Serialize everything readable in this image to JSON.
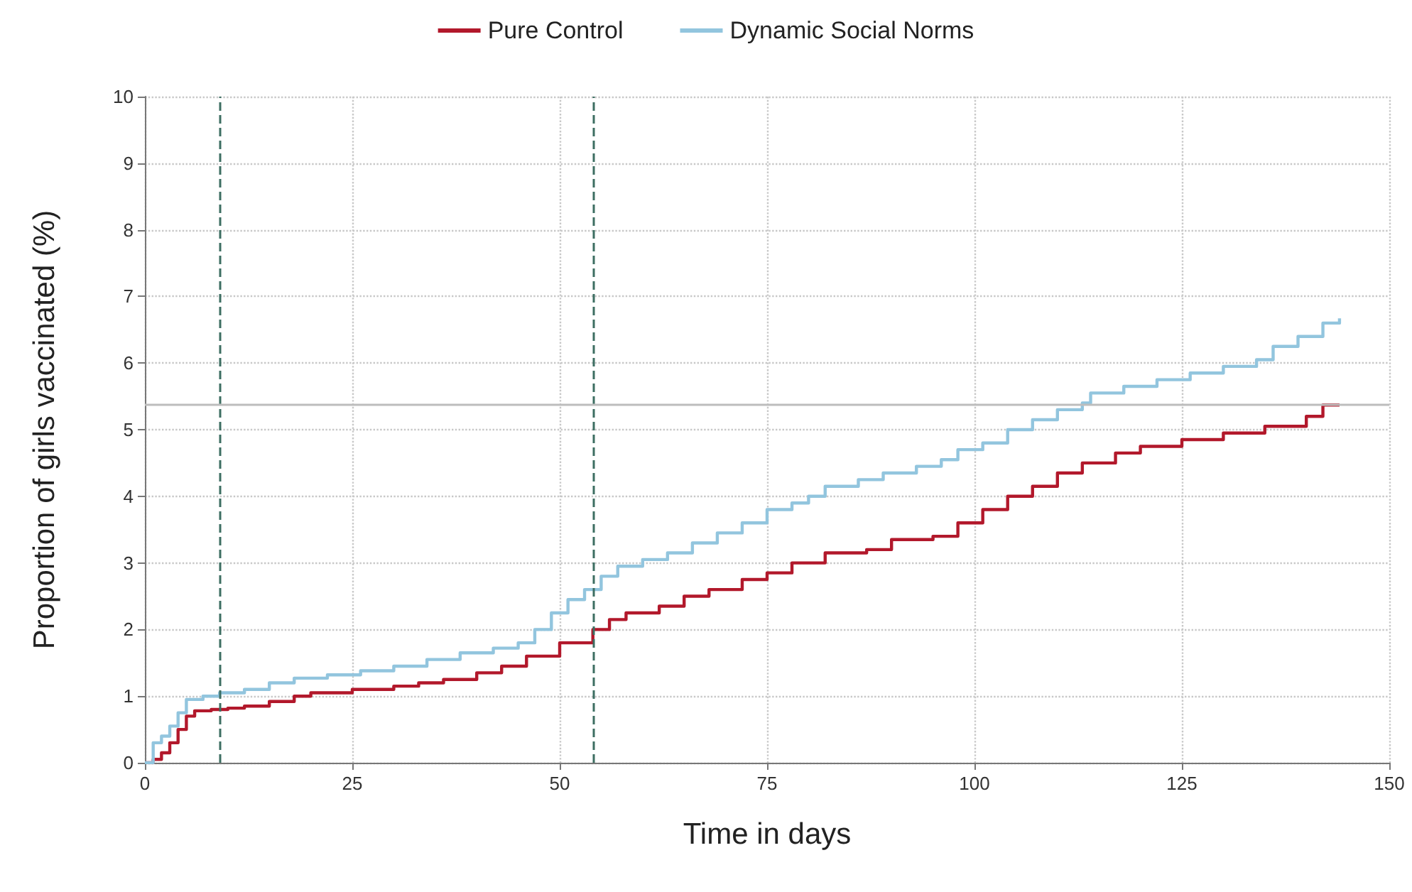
{
  "chart_data": {
    "type": "step",
    "xlabel": "Time in days",
    "ylabel": "Proportion of girls vaccinated (%)",
    "xlim": [
      0,
      150
    ],
    "xticks": [
      0,
      25,
      50,
      75,
      100,
      125,
      150
    ],
    "ylim": [
      0,
      10
    ],
    "yticks": [
      0,
      1,
      2,
      3,
      4,
      5,
      6,
      7,
      8,
      9,
      10
    ],
    "grid": true,
    "legend": "top",
    "marker": "none",
    "line_style": "solid",
    "series": [
      {
        "name": "Pure Control",
        "color": "#b2182b",
        "x": [
          0,
          1,
          2,
          3,
          4,
          5,
          6,
          8,
          10,
          12,
          15,
          18,
          20,
          25,
          30,
          33,
          36,
          40,
          43,
          46,
          50,
          54,
          56,
          58,
          62,
          65,
          68,
          72,
          75,
          78,
          82,
          87,
          90,
          95,
          98,
          101,
          104,
          107,
          110,
          113,
          117,
          120,
          125,
          130,
          135,
          140,
          142,
          144
        ],
        "values": [
          0,
          0.05,
          0.15,
          0.3,
          0.5,
          0.7,
          0.78,
          0.8,
          0.82,
          0.85,
          0.92,
          1.0,
          1.05,
          1.1,
          1.15,
          1.2,
          1.25,
          1.35,
          1.45,
          1.6,
          1.8,
          2.0,
          2.15,
          2.25,
          2.35,
          2.5,
          2.6,
          2.75,
          2.85,
          3.0,
          3.15,
          3.2,
          3.35,
          3.4,
          3.6,
          3.8,
          4.0,
          4.15,
          4.35,
          4.5,
          4.65,
          4.75,
          4.85,
          4.95,
          5.05,
          5.2,
          5.37,
          5.37
        ]
      },
      {
        "name": "Dynamic Social Norms",
        "color": "#92c5de",
        "x": [
          0,
          1,
          2,
          3,
          4,
          5,
          7,
          9,
          12,
          15,
          18,
          22,
          26,
          30,
          34,
          38,
          42,
          45,
          47,
          49,
          51,
          53,
          55,
          57,
          60,
          63,
          66,
          69,
          72,
          75,
          78,
          80,
          82,
          86,
          89,
          93,
          96,
          98,
          101,
          104,
          107,
          110,
          113,
          114,
          118,
          122,
          126,
          130,
          134,
          136,
          139,
          142,
          144
        ],
        "values": [
          0,
          0.3,
          0.4,
          0.55,
          0.75,
          0.95,
          1.0,
          1.05,
          1.1,
          1.2,
          1.27,
          1.32,
          1.38,
          1.45,
          1.55,
          1.65,
          1.72,
          1.8,
          2.0,
          2.25,
          2.45,
          2.6,
          2.8,
          2.95,
          3.05,
          3.15,
          3.3,
          3.45,
          3.6,
          3.8,
          3.9,
          4.0,
          4.15,
          4.25,
          4.35,
          4.45,
          4.55,
          4.7,
          4.8,
          5.0,
          5.15,
          5.3,
          5.4,
          5.55,
          5.65,
          5.75,
          5.85,
          5.95,
          6.05,
          6.25,
          6.4,
          6.6,
          6.67
        ]
      }
    ],
    "ref_lines": [
      {
        "axis": "x",
        "value": 9,
        "color": "#3d6e62",
        "line_style": "dashed"
      },
      {
        "axis": "x",
        "value": 54,
        "color": "#3d6e62",
        "line_style": "dashed"
      },
      {
        "axis": "y",
        "value": 5.37,
        "color": "#bdbdbd",
        "line_style": "solid"
      }
    ]
  }
}
